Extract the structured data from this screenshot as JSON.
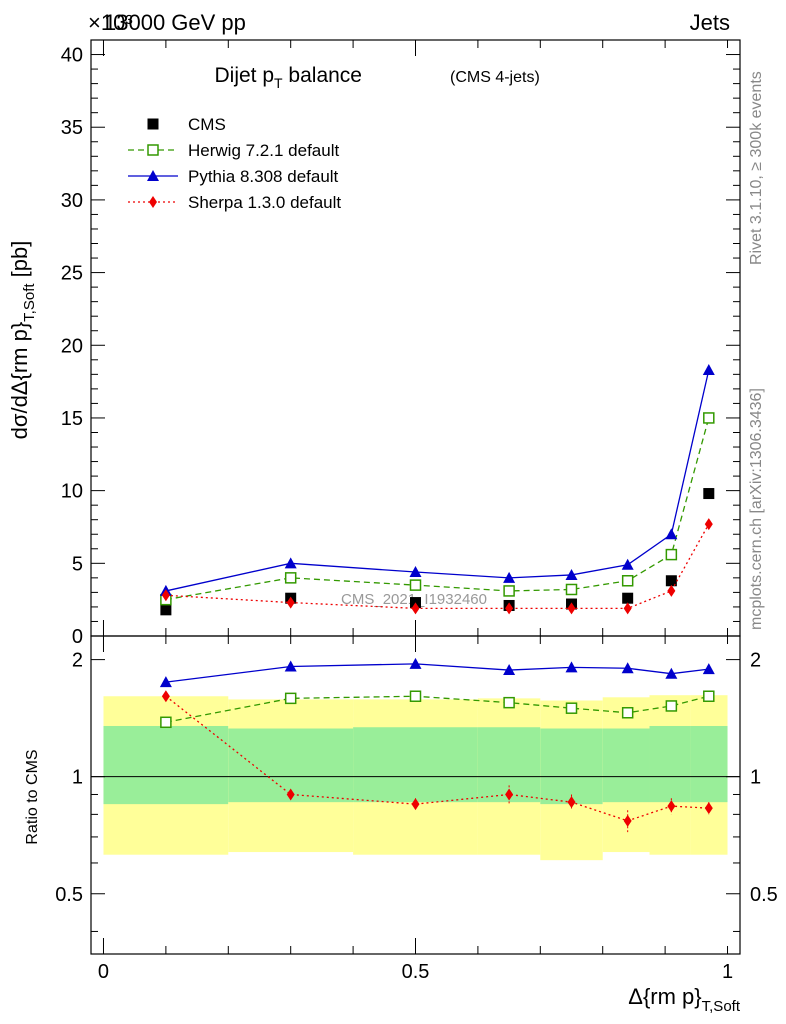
{
  "header": {
    "energy_label": "13000 GeV pp",
    "process_label": "Jets",
    "exponent_label": "×10³"
  },
  "side_labels": {
    "rivet": "Rivet 3.1.10, ≥ 300k events",
    "mcplots": "mcplots.cern.ch [arXiv:1306.3436]"
  },
  "watermark": "CMS_2021_I1932460",
  "chart_data": [
    {
      "type": "line",
      "title": "Dijet p_T balance",
      "subtitle": "(CMS 4-jets)",
      "ylabel": "dσ/dΔ{rm p}_T,Soft [pb]",
      "ylim": [
        0,
        41
      ],
      "yticks": [
        0,
        5,
        10,
        15,
        20,
        25,
        30,
        35,
        40
      ],
      "legend_position": "top-left",
      "x": [
        0.1,
        0.3,
        0.5,
        0.65,
        0.75,
        0.84,
        0.91,
        0.97
      ],
      "series": [
        {
          "name": "CMS",
          "values": [
            1.8,
            2.6,
            2.3,
            2.1,
            2.2,
            2.6,
            3.8,
            9.8
          ],
          "color": "#000000",
          "style": "points",
          "marker": "square"
        },
        {
          "name": "Herwig 7.2.1 default",
          "values": [
            2.5,
            4.0,
            3.5,
            3.1,
            3.2,
            3.8,
            5.6,
            15.0
          ],
          "color": "#339900",
          "style": "dashed",
          "marker": "open-square"
        },
        {
          "name": "Pythia 8.308 default",
          "values": [
            3.1,
            5.0,
            4.4,
            4.0,
            4.2,
            4.9,
            7.0,
            18.3
          ],
          "color": "#0000cc",
          "style": "solid",
          "marker": "triangle"
        },
        {
          "name": "Sherpa 1.3.0 default",
          "values": [
            2.8,
            2.3,
            1.9,
            1.9,
            1.9,
            1.9,
            3.1,
            7.7
          ],
          "color": "#ee0000",
          "style": "dotted",
          "marker": "diamond"
        }
      ]
    },
    {
      "type": "line",
      "ylabel": "Ratio to CMS",
      "xlabel": "Δ{rm p}_T,Soft",
      "xlim": [
        -0.02,
        1.02
      ],
      "ylim": [
        0.35,
        2.3
      ],
      "xticks": [
        0,
        0.5,
        1
      ],
      "xtick_labels": [
        "0",
        "0.5",
        "1"
      ],
      "yticks": [
        0.5,
        1,
        2
      ],
      "ytick_labels": [
        "0.5",
        "1",
        "2"
      ],
      "bands": {
        "edges": [
          0,
          0.2,
          0.4,
          0.6,
          0.7,
          0.8,
          0.875,
          0.94,
          1.0
        ],
        "yellow_low": [
          0.63,
          0.64,
          0.63,
          0.63,
          0.61,
          0.64,
          0.63,
          0.63
        ],
        "yellow_high": [
          1.61,
          1.58,
          1.58,
          1.59,
          1.57,
          1.6,
          1.62,
          1.62
        ],
        "green_low": [
          0.85,
          0.86,
          0.86,
          0.86,
          0.85,
          0.86,
          0.86,
          0.86
        ],
        "green_high": [
          1.35,
          1.33,
          1.34,
          1.34,
          1.33,
          1.33,
          1.35,
          1.35
        ]
      },
      "x": [
        0.1,
        0.3,
        0.5,
        0.65,
        0.75,
        0.84,
        0.91,
        0.97
      ],
      "series": [
        {
          "name": "Herwig 7.2.1 default",
          "values": [
            1.38,
            1.59,
            1.61,
            1.55,
            1.5,
            1.46,
            1.52,
            1.61
          ],
          "color": "#339900",
          "style": "dashed",
          "marker": "open-square"
        },
        {
          "name": "Pythia 8.308 default",
          "values": [
            1.75,
            1.92,
            1.95,
            1.88,
            1.91,
            1.9,
            1.84,
            1.89
          ],
          "color": "#0000cc",
          "style": "solid",
          "marker": "triangle"
        },
        {
          "name": "Sherpa 1.3.0 default",
          "values": [
            1.61,
            0.9,
            0.85,
            0.9,
            0.86,
            0.77,
            0.84,
            0.83
          ],
          "errors": [
            0.03,
            0.02,
            0.03,
            0.05,
            0.04,
            0.05,
            0.04,
            0.03
          ],
          "color": "#ee0000",
          "style": "dotted",
          "marker": "diamond"
        }
      ]
    }
  ]
}
